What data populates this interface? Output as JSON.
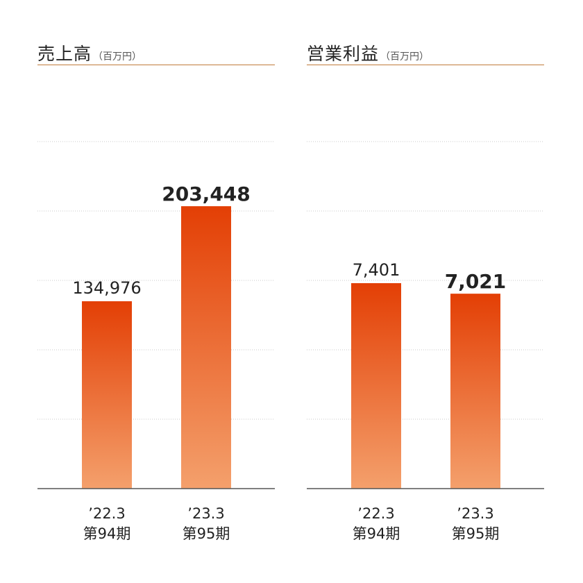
{
  "colors": {
    "bar_top": "#e33f05",
    "bar_bottom": "#f4a06c",
    "rule": "#c07a3a",
    "grid": "#c8c8c8",
    "axis": "#555555"
  },
  "chart_data": [
    {
      "type": "bar",
      "title": "売上高",
      "unit": "（百万円）",
      "categories": [
        [
          "’22.3",
          "第94期"
        ],
        [
          "’23.3",
          "第95期"
        ]
      ],
      "values": [
        134976,
        203448
      ],
      "value_labels": [
        "134,976",
        "203,448"
      ],
      "label_bold": [
        false,
        true
      ],
      "ylim": [
        0,
        250000
      ],
      "grid": true
    },
    {
      "type": "bar",
      "title": "営業利益",
      "unit": "（百万円）",
      "categories": [
        [
          "’22.3",
          "第94期"
        ],
        [
          "’23.3",
          "第95期"
        ]
      ],
      "values": [
        7401,
        7021
      ],
      "value_labels": [
        "7,401",
        "7,021"
      ],
      "label_bold": [
        false,
        true
      ],
      "ylim": [
        0,
        12500
      ],
      "grid": true
    }
  ]
}
